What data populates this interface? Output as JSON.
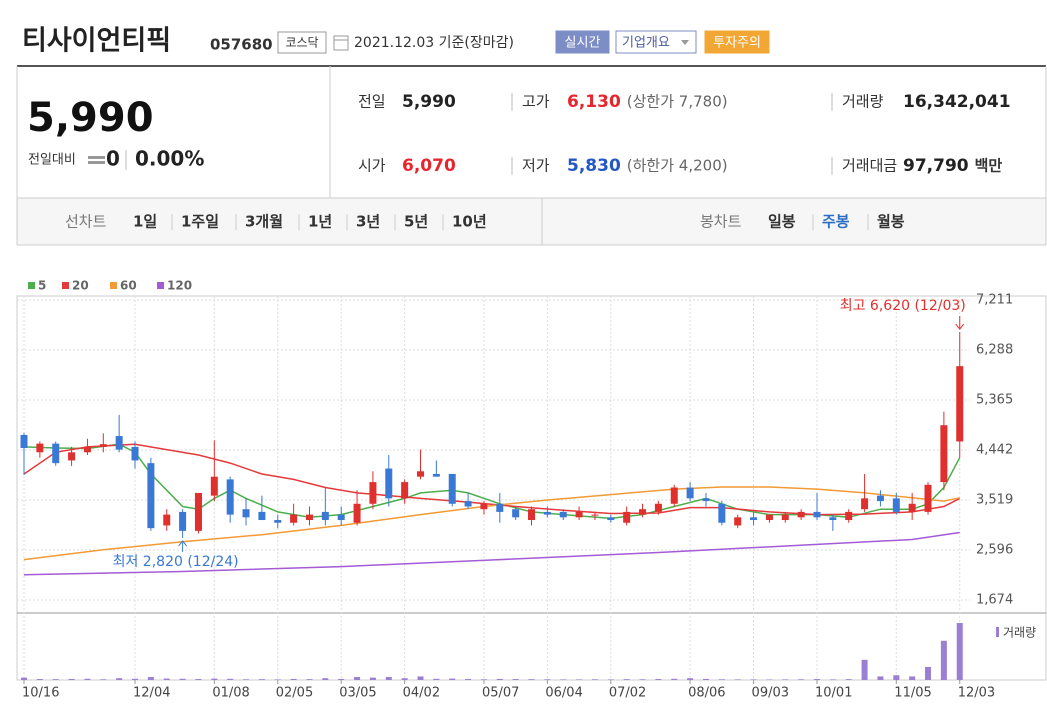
{
  "header": {
    "title": "티사이언티픽",
    "code": "057680",
    "market": "코스닥",
    "date": "2021.12.03 기준(장마감)",
    "buttons": [
      {
        "text": "실시간",
        "color": "#7d8ec6"
      },
      {
        "text": "기업개요",
        "color": "#7d8ec6"
      },
      {
        "text": "투자주의",
        "color": "#f2a735"
      }
    ]
  },
  "quote": {
    "price": "5,990",
    "change_label": "전일대비",
    "change": "0",
    "change_rate": "0.00%",
    "items": [
      {
        "label": "전일",
        "value": "5,990",
        "color": "#222222"
      },
      {
        "label": "고가",
        "value": "6,130",
        "note": "(상한가 7,780)",
        "color": "#e6262e"
      },
      {
        "label": "거래량",
        "value": "16,342,041",
        "color": "#222222"
      },
      {
        "label": "시가",
        "value": "6,070",
        "color": "#e6262e"
      },
      {
        "label": "저가",
        "value": "5,830",
        "note": "(하한가 4,200)",
        "color": "#2456c4"
      },
      {
        "label": "거래대금",
        "value": "97,790",
        "unit": "백만",
        "color": "#222222"
      }
    ]
  },
  "tabs": {
    "line_chart": {
      "label": "선차트",
      "options": [
        "1일",
        "1주일",
        "3개월",
        "1년",
        "3년",
        "5년",
        "10년"
      ]
    },
    "candle_chart": {
      "label": "봉차트",
      "options": [
        "일봉",
        "주봉",
        "월봉"
      ],
      "active_index": 1
    }
  },
  "chart_data": {
    "type": "candlestick",
    "categories": [
      "10/16",
      null,
      null,
      null,
      null,
      null,
      null,
      "12/04",
      null,
      null,
      null,
      null,
      "01/08",
      null,
      null,
      null,
      "02/05",
      null,
      null,
      null,
      "03/05",
      null,
      null,
      null,
      "04/02",
      null,
      null,
      null,
      null,
      "05/07",
      null,
      null,
      null,
      "06/04",
      null,
      null,
      null,
      "07/02",
      null,
      null,
      null,
      null,
      "08/06",
      null,
      null,
      null,
      "09/03",
      null,
      null,
      null,
      "10/01",
      null,
      null,
      null,
      null,
      "11/05",
      null,
      null,
      null,
      "12/03"
    ],
    "open": [
      4720,
      4400,
      4560,
      4250,
      4400,
      4500,
      4700,
      4500,
      4200,
      3050,
      3300,
      2950,
      3600,
      3900,
      3350,
      3300,
      3150,
      3100,
      3150,
      3300,
      3250,
      3100,
      3450,
      4100,
      3550,
      3950,
      4000,
      4000,
      3500,
      3350,
      3450,
      3350,
      3150,
      3300,
      3300,
      3200,
      3250,
      3200,
      3100,
      3250,
      3300,
      3450,
      3750,
      3550,
      3450,
      3050,
      3200,
      3150,
      3150,
      3200,
      3300,
      3200,
      3150,
      3350,
      3600,
      3550,
      3300,
      3300,
      3850,
      4600
    ],
    "high": [
      4760,
      4600,
      4600,
      4500,
      4650,
      4750,
      5090,
      4600,
      4300,
      3350,
      3350,
      3650,
      4620,
      3950,
      3550,
      3600,
      3250,
      3450,
      3400,
      3750,
      3400,
      3700,
      4050,
      4350,
      3900,
      4450,
      4250,
      4000,
      3650,
      3500,
      3650,
      3400,
      3400,
      3400,
      3350,
      3400,
      3300,
      3250,
      3400,
      3450,
      3500,
      3800,
      3850,
      3650,
      3500,
      3250,
      3300,
      3250,
      3300,
      3350,
      3650,
      3250,
      3350,
      4000,
      3700,
      3650,
      3650,
      3850,
      5150,
      6620
    ],
    "low": [
      3980,
      4300,
      4150,
      4150,
      4350,
      4400,
      4400,
      4100,
      2950,
      2950,
      2820,
      2900,
      3500,
      3100,
      3050,
      3150,
      3000,
      3050,
      3050,
      3050,
      3050,
      3050,
      3350,
      3400,
      3450,
      3900,
      3950,
      3400,
      3350,
      3250,
      3100,
      3150,
      3050,
      3200,
      3150,
      3150,
      3150,
      3100,
      3050,
      3200,
      3250,
      3400,
      3500,
      3400,
      3050,
      3000,
      3050,
      3100,
      3100,
      3150,
      3150,
      2950,
      3100,
      3300,
      3400,
      3250,
      3150,
      3250,
      3700,
      4300
    ],
    "close": [
      4480,
      4560,
      4200,
      4400,
      4500,
      4550,
      4450,
      4250,
      3000,
      3250,
      2950,
      3650,
      3950,
      3250,
      3200,
      3150,
      3100,
      3250,
      3250,
      3150,
      3150,
      3450,
      3850,
      3550,
      3850,
      4050,
      3950,
      3450,
      3400,
      3450,
      3300,
      3200,
      3350,
      3250,
      3200,
      3300,
      3250,
      3150,
      3300,
      3350,
      3450,
      3750,
      3550,
      3500,
      3100,
      3200,
      3150,
      3250,
      3250,
      3300,
      3200,
      3150,
      3300,
      3550,
      3500,
      3300,
      3450,
      3800,
      4900,
      5990
    ],
    "up_color": "#e0302e",
    "down_color": "#3a78d6",
    "ylim": [
      1674,
      7211
    ],
    "yticks": [
      {
        "value": 7211,
        "label": "7,211"
      },
      {
        "value": 6288,
        "label": "6,288"
      },
      {
        "value": 5365,
        "label": "5,365"
      },
      {
        "value": 4442,
        "label": "4,442"
      },
      {
        "value": 3519,
        "label": "3,519"
      },
      {
        "value": 2596,
        "label": "2,596"
      },
      {
        "value": 1674,
        "label": "1,674"
      }
    ],
    "grid": true,
    "series": [
      {
        "name": "5",
        "color": "#4cae4c",
        "x": [
          0,
          2,
          4,
          6,
          7,
          8,
          9,
          10,
          11,
          12,
          13,
          14,
          16,
          18,
          20,
          22,
          24,
          25,
          27,
          28,
          30,
          32,
          34,
          37,
          39,
          41,
          43,
          45,
          47,
          50,
          52,
          54,
          56,
          57,
          58,
          59
        ],
        "values": [
          4500,
          4480,
          4470,
          4550,
          4400,
          4000,
          3700,
          3400,
          3350,
          3550,
          3700,
          3550,
          3300,
          3200,
          3250,
          3400,
          3550,
          3650,
          3700,
          3650,
          3450,
          3300,
          3250,
          3180,
          3250,
          3400,
          3550,
          3350,
          3250,
          3250,
          3200,
          3350,
          3350,
          3450,
          3750,
          4300
        ]
      },
      {
        "name": "20",
        "color": "#e4393a",
        "x": [
          0,
          2,
          4,
          7,
          9,
          11,
          13,
          15,
          17,
          19,
          21,
          23,
          25,
          28,
          31,
          34,
          37,
          40,
          42,
          44,
          47,
          50,
          53,
          56,
          58,
          59
        ],
        "values": [
          4000,
          4400,
          4500,
          4550,
          4450,
          4350,
          4200,
          4000,
          3900,
          3750,
          3650,
          3600,
          3550,
          3480,
          3400,
          3330,
          3270,
          3280,
          3380,
          3380,
          3300,
          3250,
          3260,
          3300,
          3400,
          3550
        ]
      },
      {
        "name": "60",
        "color": "#f29a35",
        "x": [
          0,
          5,
          10,
          15,
          20,
          25,
          29,
          33,
          37,
          41,
          44,
          47,
          50,
          53,
          56,
          58,
          59
        ],
        "values": [
          2420,
          2600,
          2750,
          2880,
          3050,
          3250,
          3400,
          3520,
          3620,
          3720,
          3760,
          3760,
          3720,
          3650,
          3560,
          3500,
          3560
        ]
      },
      {
        "name": "120",
        "color": "#a35bd6",
        "x": [
          0,
          10,
          20,
          30,
          40,
          50,
          56,
          59
        ],
        "values": [
          2140,
          2200,
          2290,
          2420,
          2550,
          2700,
          2790,
          2920
        ]
      }
    ],
    "annotations": [
      {
        "text": "최고 6,620 (12/03)",
        "x": 59,
        "y": 6620,
        "color": "#e0302e"
      },
      {
        "text": "최저 2,820 (12/24)",
        "x": 10,
        "y": 2820,
        "color": "#3a78d6"
      }
    ],
    "volume": {
      "name": "거래량",
      "color": "#9a7fd3",
      "values": [
        2000000,
        800000,
        700000,
        900000,
        1000000,
        600000,
        1500000,
        1000000,
        2500000,
        1200000,
        1000000,
        800000,
        1200000,
        1000000,
        600000,
        700000,
        500000,
        900000,
        700000,
        1500000,
        900000,
        2500000,
        2000000,
        2500000,
        1500000,
        3000000,
        1000000,
        1200000,
        800000,
        600000,
        900000,
        800000,
        700000,
        600000,
        500000,
        500000,
        600000,
        500000,
        700000,
        600000,
        800000,
        1000000,
        1500000,
        900000,
        600000,
        500000,
        500000,
        400000,
        500000,
        600000,
        800000,
        500000,
        700000,
        17000000,
        3000000,
        4000000,
        3000000,
        11000000,
        33000000,
        48000000
      ]
    }
  }
}
